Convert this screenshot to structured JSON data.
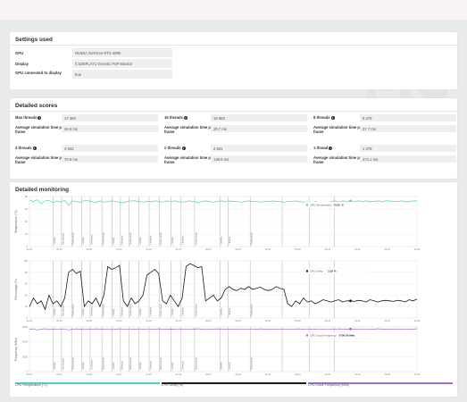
{
  "watermark": "MC",
  "settings": {
    "title": "Settings used",
    "rows": [
      {
        "label": "GPU",
        "value": "NVIDIA GeForce RTX 4090"
      },
      {
        "label": "Display",
        "value": "\\\\.\\DISPLAY1 Generic PnP Monitor"
      },
      {
        "label": "GPU connected to display",
        "value": "true"
      }
    ]
  },
  "scores": {
    "title": "Detailed scores",
    "items": [
      {
        "label": "Max threads",
        "value": "17 486",
        "sublabel": "Average simulation time per frame",
        "subvalue": "20.0 ms"
      },
      {
        "label": "16 threads",
        "value": "16 893",
        "sublabel": "Average simulation time per frame",
        "subvalue": "20.7 ms"
      },
      {
        "label": "8 threads",
        "value": "9 275",
        "sublabel": "Average simulation time per frame",
        "subvalue": "37.7 ms"
      },
      {
        "label": "4 threads",
        "value": "4 933",
        "sublabel": "Average simulation time per frame",
        "subvalue": "70.9 ms"
      },
      {
        "label": "2 threads",
        "value": "2 501",
        "sublabel": "Average simulation time per frame",
        "subvalue": "139.9 ms"
      },
      {
        "label": "1 thread",
        "value": "1 276",
        "sublabel": "Average simulation time per frame",
        "subvalue": "274.1 ms"
      }
    ]
  },
  "monitoring": {
    "title": "Detailed monitoring",
    "bottom_legend": [
      "CPU Temperature (°C)",
      "CPU Utility (%)",
      "CPU Clock Frequency (MHz)"
    ],
    "colors": {
      "temp": "#4fd1c0",
      "util": "#1a1a1a",
      "freq": "#9b6fd0"
    }
  },
  "chart_data": [
    {
      "type": "line",
      "ylabel": "Temperature (°C)",
      "legend": "CPU Temperature",
      "readout": "73.25 °C",
      "ylim": [
        0,
        80
      ],
      "yticks": [
        "80",
        "60",
        "40",
        "20",
        "0"
      ],
      "xticks": [
        "00:00",
        "00:20",
        "00:40",
        "01:00",
        "01:20",
        "01:40",
        "02:00",
        "02:20",
        "02:40",
        "03:00",
        "03:20",
        "03:40",
        "04:00",
        "04:20"
      ],
      "values": [
        74,
        72,
        75,
        68,
        73,
        74,
        70,
        73,
        71,
        74,
        66,
        73,
        72,
        70,
        74,
        73,
        72,
        70,
        73,
        71,
        72,
        73,
        72,
        71,
        70,
        72,
        73,
        73,
        72,
        71,
        72,
        72,
        73,
        72,
        71,
        73,
        72,
        73,
        72,
        71,
        72,
        73,
        72,
        70,
        72,
        73,
        72,
        71,
        72,
        73,
        72,
        73,
        72,
        72,
        71,
        72,
        73,
        72,
        72,
        71,
        72,
        72,
        73,
        72,
        72,
        71,
        72,
        72,
        73,
        72,
        71,
        72,
        70,
        72,
        71,
        71,
        70,
        72,
        73,
        72,
        73,
        72,
        73,
        72,
        73,
        72,
        73,
        72,
        72,
        73,
        72,
        73,
        73,
        72,
        72,
        73,
        72,
        72,
        73,
        73
      ]
    },
    {
      "type": "line",
      "ylabel": "Percentage (%)",
      "legend": "CPU Utility",
      "readout": "3.35 %",
      "ylim": [
        0,
        100
      ],
      "yticks": [
        "100",
        "80",
        "60",
        "40",
        "20",
        "0"
      ],
      "values": [
        20,
        35,
        25,
        30,
        15,
        40,
        25,
        30,
        20,
        35,
        80,
        85,
        78,
        82,
        20,
        30,
        25,
        35,
        20,
        40,
        90,
        85,
        88,
        92,
        30,
        20,
        35,
        25,
        30,
        40,
        75,
        80,
        85,
        78,
        30,
        25,
        40,
        30,
        20,
        35,
        90,
        95,
        92,
        88,
        90,
        30,
        35,
        40,
        30,
        35,
        50,
        55,
        50,
        48,
        52,
        50,
        55,
        50,
        52,
        54,
        50,
        48,
        50,
        55,
        52,
        50,
        25,
        20,
        30,
        25,
        35,
        28,
        30,
        25,
        28,
        32,
        30,
        28,
        30,
        32,
        28,
        30,
        30,
        29,
        31,
        30,
        28,
        32,
        30,
        28,
        30,
        31,
        30,
        29,
        31,
        30,
        28,
        32,
        30,
        33
      ]
    },
    {
      "type": "line",
      "ylabel": "Frequency (MHz)",
      "legend": "CPU Clock Frequency",
      "readout": "5756.00 MHz",
      "ylim": [
        0,
        6000
      ],
      "yticks": [
        "6000",
        "4000",
        "2000",
        "0"
      ],
      "values": [
        5700,
        5750,
        5600,
        5700,
        5760,
        5650,
        5700,
        5720,
        5680,
        5750,
        5600,
        5700,
        5750,
        5700,
        5650,
        5720,
        5700,
        5750,
        5680,
        5700,
        5720,
        5650,
        5700,
        5750,
        5700,
        5680,
        5720,
        5700,
        5740,
        5700,
        5660,
        5720,
        5700,
        5750,
        5700,
        5690,
        5710,
        5700,
        5740,
        5700,
        5680,
        5720,
        5700,
        5760,
        5700,
        5650,
        5720,
        5700,
        5750,
        5700,
        5690,
        5700,
        5720,
        5700,
        5740,
        5700,
        5680,
        5720,
        5700,
        5750,
        5700,
        5700,
        5720,
        5700,
        5740,
        5700,
        5680,
        5720,
        5700,
        5750,
        5690,
        5700,
        5720,
        5700,
        5740,
        5700,
        5680,
        5720,
        5700,
        5750,
        5700,
        5690,
        5720,
        5700,
        5740,
        5700,
        5680,
        5720,
        5700,
        5756,
        5700,
        5700,
        5720,
        5700,
        5740,
        5700,
        5680,
        5720,
        5700,
        5756
      ]
    }
  ],
  "markers": [
    "Loading",
    "Max threads",
    "Saving result",
    "Loading",
    "16 threads",
    "Saving result",
    "Loading",
    "8 threads",
    "Saving result",
    "Loading",
    "4 threads",
    "Saving result",
    "Loading",
    "2 threads",
    "Saving result",
    "Loading",
    "1 thread",
    "Saving result"
  ]
}
